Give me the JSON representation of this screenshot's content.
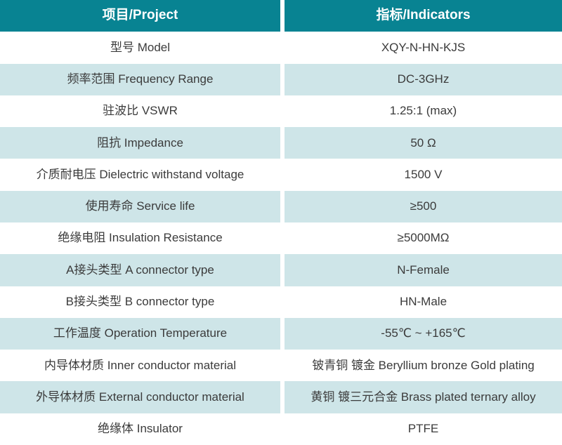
{
  "table": {
    "columns": {
      "project": "项目/Project",
      "indicators": "指标/Indicators"
    },
    "rows": [
      {
        "project": "型号 Model",
        "indicator": "XQY-N-HN-KJS"
      },
      {
        "project": "频率范围 Frequency Range",
        "indicator": "DC-3GHz"
      },
      {
        "project": "驻波比 VSWR",
        "indicator": "1.25:1 (max)"
      },
      {
        "project": "阻抗 Impedance",
        "indicator": "50 Ω"
      },
      {
        "project": "介质耐电压 Dielectric withstand voltage",
        "indicator": "1500 V"
      },
      {
        "project": "使用寿命 Service life",
        "indicator": "≥500"
      },
      {
        "project": "绝缘电阻 Insulation Resistance",
        "indicator": "≥5000MΩ"
      },
      {
        "project": "A接头类型 A connector type",
        "indicator": "N-Female"
      },
      {
        "project": "B接头类型 B connector type",
        "indicator": "HN-Male"
      },
      {
        "project": "工作温度 Operation Temperature",
        "indicator": "-55℃ ~ +165℃"
      },
      {
        "project": "内导体材质 Inner conductor material",
        "indicator": "铍青铜 镀金 Beryllium bronze Gold plating"
      },
      {
        "project": "外导体材质 External conductor material",
        "indicator": "黄铜 镀三元合金 Brass plated ternary alloy"
      },
      {
        "project": "绝缘体 Insulator",
        "indicator": "PTFE"
      }
    ],
    "colors": {
      "header_bg": "#088392",
      "header_text": "#ffffff",
      "row_bg": "#ffffff",
      "row_alt_bg": "#cee5e8",
      "text": "#3b3b3b",
      "divider": "#ffffff"
    }
  }
}
